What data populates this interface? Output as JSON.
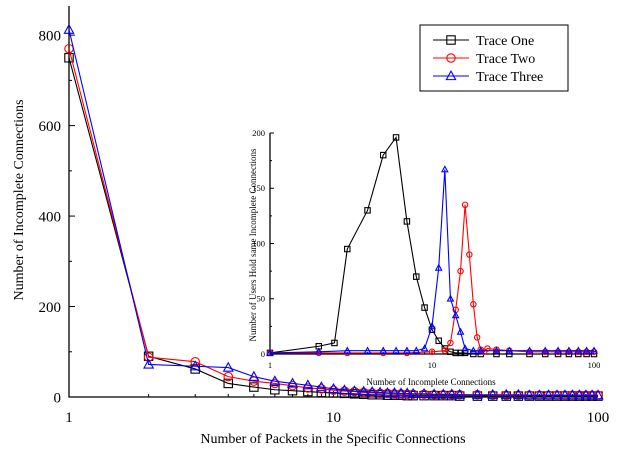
{
  "chart_data": [
    {
      "type": "line",
      "xlabel": "Number of Packets in the Specific Connections",
      "ylabel": "Number of Incomplete Connections",
      "xscale": "log",
      "xlim": [
        1,
        100
      ],
      "ylim": [
        0,
        860
      ],
      "x_ticks": [
        1,
        10,
        100
      ],
      "x_tick_labels": [
        "1",
        "10",
        "100"
      ],
      "y_ticks": [
        0,
        200,
        400,
        600,
        800
      ],
      "y_tick_labels": [
        "0",
        "200",
        "400",
        "600",
        "800"
      ],
      "legend": "top-right",
      "series": [
        {
          "name": "Trace One",
          "color": "#000000",
          "marker": "square",
          "x": [
            1,
            2,
            3,
            4,
            5,
            6,
            7,
            8,
            9,
            10,
            11,
            12,
            13,
            14,
            15,
            16,
            17,
            18,
            19,
            20,
            22,
            24,
            26,
            28,
            30,
            35,
            40,
            45,
            50,
            55,
            60,
            65,
            70,
            75,
            80,
            85,
            90,
            95,
            100
          ],
          "values": [
            750,
            90,
            62,
            30,
            22,
            16,
            14,
            12,
            10,
            9,
            8,
            7,
            6,
            5,
            5,
            4,
            4,
            4,
            3,
            3,
            3,
            3,
            3,
            3,
            2,
            2,
            2,
            2,
            2,
            2,
            2,
            2,
            2,
            2,
            2,
            2,
            2,
            2,
            2
          ]
        },
        {
          "name": "Trace Two",
          "color": "#ff0000",
          "marker": "circle",
          "x": [
            1,
            2,
            3,
            4,
            5,
            6,
            7,
            8,
            9,
            10,
            11,
            12,
            13,
            14,
            15,
            16,
            17,
            18,
            19,
            20,
            22,
            24,
            26,
            28,
            30,
            35,
            40,
            45,
            50,
            55,
            60,
            65,
            70,
            75,
            80,
            85,
            90,
            95,
            100
          ],
          "values": [
            770,
            88,
            78,
            45,
            35,
            30,
            25,
            20,
            18,
            15,
            13,
            12,
            10,
            9,
            8,
            8,
            7,
            7,
            6,
            6,
            6,
            5,
            5,
            5,
            5,
            5,
            4,
            4,
            4,
            4,
            4,
            4,
            4,
            4,
            4,
            4,
            4,
            4,
            4
          ]
        },
        {
          "name": "Trace Three",
          "color": "#0000ff",
          "marker": "triangle",
          "x": [
            1,
            2,
            3,
            4,
            5,
            6,
            7,
            8,
            9,
            10,
            11,
            12,
            13,
            14,
            15,
            16,
            17,
            18,
            19,
            20,
            22,
            24,
            26,
            28,
            30,
            35,
            40,
            45,
            50,
            55,
            60,
            65,
            70,
            75,
            80,
            85,
            90,
            95,
            100
          ],
          "values": [
            812,
            72,
            68,
            65,
            45,
            35,
            30,
            26,
            22,
            18,
            15,
            13,
            12,
            11,
            10,
            9,
            9,
            8,
            8,
            7,
            7,
            6,
            6,
            6,
            5,
            5,
            5,
            5,
            5,
            4,
            4,
            4,
            4,
            4,
            4,
            4,
            4,
            4,
            4
          ]
        }
      ]
    },
    {
      "type": "line",
      "placement": "inset",
      "xlabel": "Number of Incomplete Connections",
      "ylabel": "Number of Users Hold  same Incomplete Connections",
      "xscale": "log",
      "xlim": [
        1,
        100
      ],
      "ylim": [
        0,
        200
      ],
      "x_ticks": [
        1,
        10,
        100
      ],
      "x_tick_labels": [
        "1",
        "10",
        "100"
      ],
      "y_ticks": [
        0,
        50,
        100,
        150,
        200
      ],
      "y_tick_labels": [
        "0",
        "50",
        "100",
        "150",
        "200"
      ],
      "series": [
        {
          "name": "Trace One",
          "color": "#000000",
          "marker": "square",
          "x": [
            1,
            2,
            2.5,
            3,
            4,
            5,
            6,
            7,
            8,
            9,
            10,
            11,
            12,
            13,
            14,
            15,
            16,
            18,
            20,
            25,
            30,
            40,
            50,
            60,
            70,
            80,
            90,
            100
          ],
          "values": [
            1,
            7,
            10,
            95,
            130,
            180,
            196,
            120,
            70,
            42,
            22,
            12,
            5,
            2,
            1,
            1,
            1,
            0,
            0,
            0,
            0,
            0,
            0,
            0,
            0,
            0,
            0,
            0
          ]
        },
        {
          "name": "Trace Two",
          "color": "#ff0000",
          "marker": "circle",
          "x": [
            1,
            2,
            3,
            5,
            7,
            10,
            12,
            13,
            14,
            15,
            16,
            17,
            18,
            19,
            20,
            21,
            22,
            25,
            30,
            40,
            50,
            60,
            70,
            80,
            90,
            100
          ],
          "values": [
            1,
            1,
            1,
            1,
            1,
            2,
            3,
            10,
            40,
            75,
            135,
            90,
            45,
            15,
            4,
            2,
            5,
            4,
            3,
            2,
            2,
            2,
            2,
            2,
            2,
            2
          ]
        },
        {
          "name": "Trace Three",
          "color": "#0000ff",
          "marker": "triangle",
          "x": [
            1,
            2,
            3,
            4,
            5,
            6,
            7,
            8,
            9,
            10,
            11,
            12,
            13,
            14,
            15,
            16,
            18,
            20,
            25,
            30,
            40,
            50,
            60,
            70,
            80,
            90,
            100
          ],
          "values": [
            1,
            2,
            3,
            3,
            3,
            3,
            3,
            3,
            5,
            25,
            78,
            167,
            50,
            35,
            20,
            5,
            3,
            3,
            3,
            3,
            3,
            3,
            3,
            3,
            3,
            3,
            3
          ]
        }
      ]
    }
  ]
}
